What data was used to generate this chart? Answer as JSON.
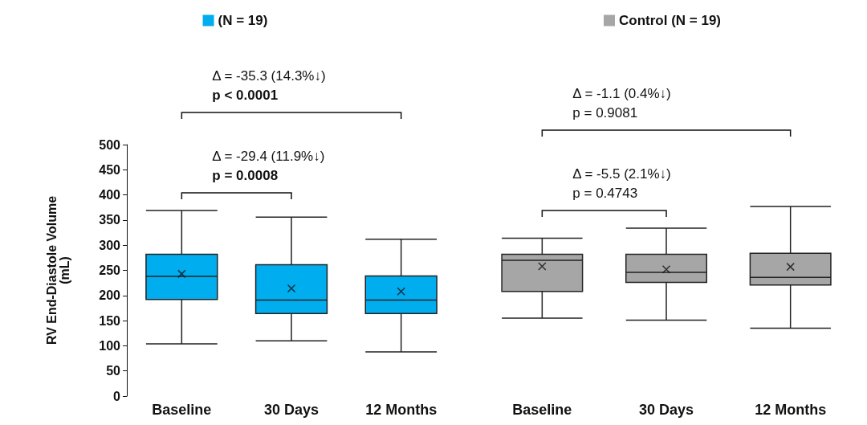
{
  "chart_data": [
    {
      "type": "box",
      "ylabel": "RV End-Diastole Volume\n(mL)",
      "categories": [
        "Baseline",
        "30 Days",
        "12 Months"
      ],
      "ylim": [
        0,
        500
      ],
      "yticks": [
        0,
        50,
        100,
        150,
        200,
        250,
        300,
        350,
        400,
        450,
        500
      ],
      "grid": false,
      "legend": "top",
      "marker": "cross",
      "series": [
        {
          "name": "(N = 19)",
          "color": "#00aeef",
          "boxes": [
            {
              "low": 104,
              "q1": 192,
              "median": 238,
              "q3": 282,
              "high": 369,
              "mean": 243
            },
            {
              "low": 110,
              "q1": 164,
              "median": 191,
              "q3": 261,
              "high": 356,
              "mean": 214
            },
            {
              "low": 88,
              "q1": 164,
              "median": 191,
              "q3": 239,
              "high": 312,
              "mean": 208
            }
          ]
        }
      ],
      "annotations": [
        "Δ = -29.4 (11.9%↓)",
        "p = 0.0008",
        "Δ = -35.3 (14.3%↓)",
        "p < 0.0001"
      ]
    },
    {
      "type": "box",
      "categories": [
        "Baseline",
        "30 Days",
        "12 Months"
      ],
      "ylim": [
        0,
        500
      ],
      "yticks": [
        0,
        50,
        100,
        150,
        200,
        250,
        300,
        350,
        400,
        450,
        500
      ],
      "grid": false,
      "legend": "top",
      "marker": "cross",
      "tick_labels": "x",
      "series": [
        {
          "name": "Control (N = 19)",
          "color": "#a6a6a6",
          "boxes": [
            {
              "low": 155,
              "q1": 208,
              "median": 270,
              "q3": 282,
              "high": 314,
              "mean": 258
            },
            {
              "low": 151,
              "q1": 226,
              "median": 246,
              "q3": 282,
              "high": 334,
              "mean": 252
            },
            {
              "low": 135,
              "q1": 221,
              "median": 236,
              "q3": 284,
              "high": 377,
              "mean": 257
            }
          ]
        }
      ],
      "annotations": [
        "Δ = -5.5 (2.1%↓)",
        "p = 0.4743",
        "Δ = -1.1 (0.4%↓)",
        "p = 0.9081"
      ]
    }
  ]
}
